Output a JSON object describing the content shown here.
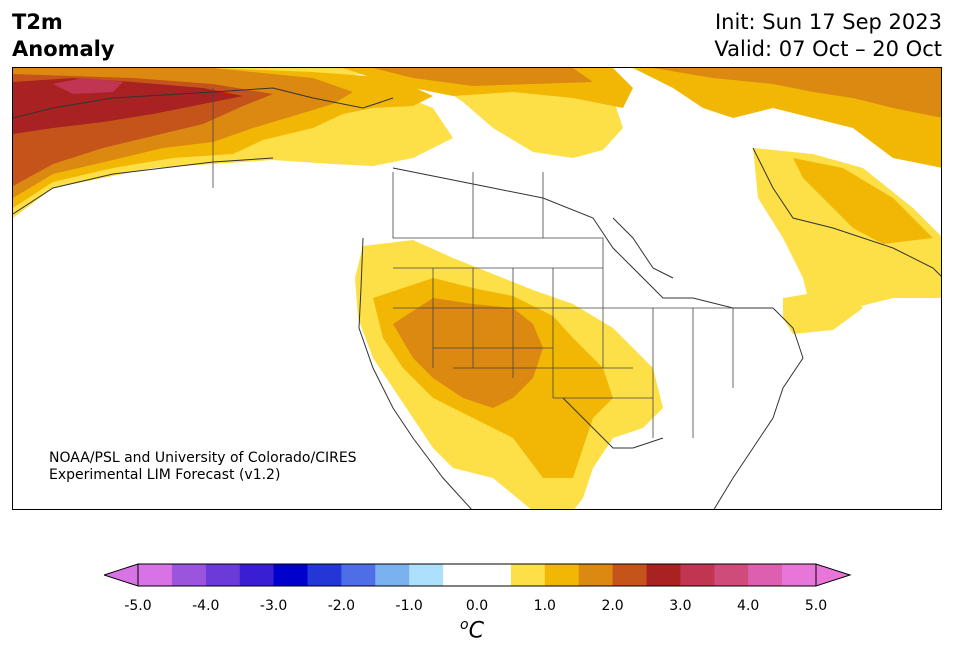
{
  "header": {
    "title_line1": "T2m",
    "title_line2": "Anomaly",
    "init": "Init: Sun 17 Sep 2023",
    "valid": "Valid: 07 Oct – 20 Oct"
  },
  "credit": {
    "line1": "NOAA/PSL and University of Colorado/CIRES",
    "line2": "Experimental LIM Forecast (v1.2)"
  },
  "colorbar": {
    "unit": "C",
    "unit_prefix": "o",
    "ticks": [
      "-5.0",
      "-4.0",
      "-3.0",
      "-2.0",
      "-1.0",
      "0.0",
      "1.0",
      "2.0",
      "3.0",
      "4.0",
      "5.0"
    ],
    "colors": [
      "#d873e6",
      "#9b55dd",
      "#6c3ad9",
      "#3a1fd2",
      "#0000cc",
      "#2536d6",
      "#4d6ee6",
      "#7ab2f0",
      "#ade0fa",
      "#ffffff",
      "#ffffff",
      "#fde047",
      "#f2b705",
      "#dc8912",
      "#c5541a",
      "#a82222",
      "#bf3552",
      "#cf4b7a",
      "#dd60b0",
      "#e876d8"
    ],
    "under_color": "#d873e6",
    "over_color": "#e876d8"
  },
  "palette": {
    "anom_0_5": "#fde047",
    "anom_1_0": "#f2b705",
    "anom_1_5": "#dc8912",
    "anom_2_0": "#c5541a",
    "anom_2_5": "#a82222",
    "anom_3_0": "#bf3552"
  }
}
